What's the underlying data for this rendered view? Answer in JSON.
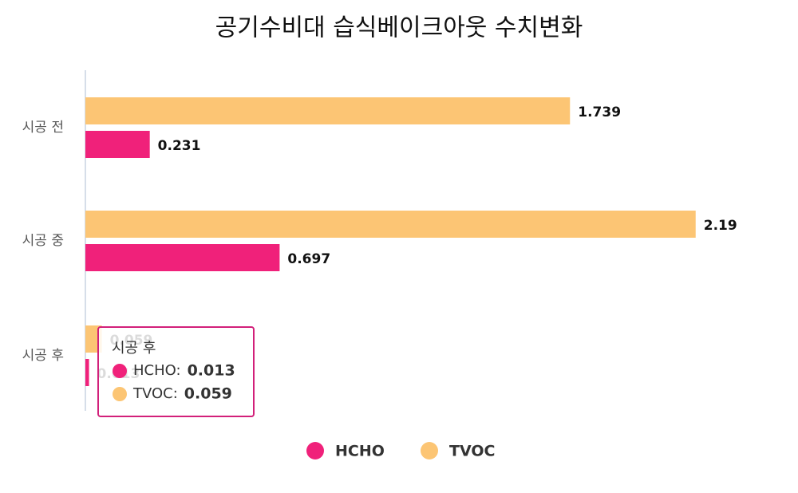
{
  "chart_data": {
    "type": "bar",
    "orientation": "horizontal",
    "title": "공기수비대 습식베이크아웃 수치변화",
    "categories": [
      "시공 전",
      "시공 중",
      "시공 후"
    ],
    "series": [
      {
        "name": "HCHO",
        "color": "#f0217a",
        "values": [
          0.231,
          0.697,
          0.013
        ]
      },
      {
        "name": "TVOC",
        "color": "#fcc574",
        "values": [
          1.739,
          2.19,
          0.059
        ]
      }
    ],
    "xlim": [
      0,
      2.5
    ],
    "legend": "bottom",
    "tooltip": {
      "title": "시공 후",
      "items": [
        {
          "label": "HCHO:",
          "value": 0.013,
          "color": "#f0217a"
        },
        {
          "label": "TVOC:",
          "value": 0.059,
          "color": "#fcc574"
        }
      ]
    }
  }
}
